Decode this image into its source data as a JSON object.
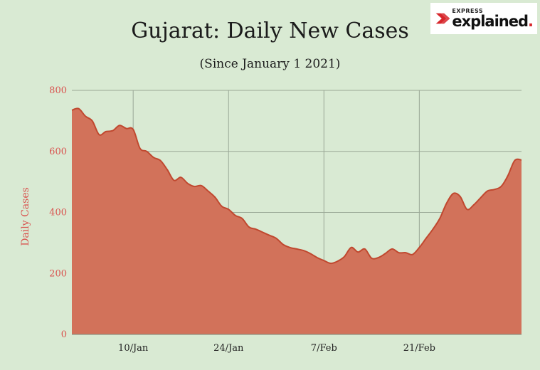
{
  "header": {
    "title": "Gujarat: Daily New Cases",
    "subtitle": "(Since January 1 2021)"
  },
  "logo": {
    "top_text": "EXPRESS",
    "main_text": "explained",
    "dot": ".",
    "accent_color": "#d7262b"
  },
  "colors": {
    "background": "#d9ead3",
    "area_fill": "#d2725a",
    "area_stroke": "#c0482f",
    "tick_label": "#d9534f",
    "grid": "#9aa896"
  },
  "chart_data": {
    "type": "area",
    "title": "Gujarat: Daily New Cases",
    "subtitle": "(Since January 1 2021)",
    "xlabel": "",
    "ylabel": "Daily Cases",
    "ylim": [
      0,
      800
    ],
    "yticks": [
      0,
      200,
      400,
      600,
      800
    ],
    "xlim": [
      1,
      67
    ],
    "xticks": [
      {
        "day": 10,
        "label": "10/Jan"
      },
      {
        "day": 24,
        "label": "24/Jan"
      },
      {
        "day": 38,
        "label": "7/Feb"
      },
      {
        "day": 52,
        "label": "21/Feb"
      }
    ],
    "grid": true,
    "series": [
      {
        "name": "",
        "x": [
          1,
          2,
          3,
          4,
          5,
          6,
          7,
          8,
          9,
          10,
          11,
          12,
          13,
          14,
          15,
          16,
          17,
          18,
          19,
          20,
          21,
          22,
          23,
          24,
          25,
          26,
          27,
          28,
          29,
          30,
          31,
          32,
          33,
          34,
          35,
          36,
          37,
          38,
          39,
          40,
          41,
          42,
          43,
          44,
          45,
          46,
          47,
          48,
          49,
          50,
          51,
          52,
          53,
          54,
          55,
          56,
          57,
          58,
          59,
          60,
          61,
          62,
          63,
          64,
          65,
          66,
          67
        ],
        "values": [
          735,
          740,
          715,
          700,
          655,
          665,
          668,
          685,
          675,
          672,
          610,
          600,
          580,
          570,
          540,
          505,
          515,
          495,
          485,
          488,
          470,
          450,
          420,
          410,
          390,
          380,
          352,
          345,
          335,
          325,
          315,
          295,
          285,
          280,
          275,
          265,
          252,
          242,
          233,
          240,
          255,
          285,
          270,
          280,
          250,
          252,
          265,
          280,
          268,
          268,
          262,
          285,
          315,
          345,
          380,
          430,
          462,
          452,
          410,
          425,
          448,
          470,
          475,
          485,
          520,
          570,
          572
        ]
      }
    ]
  }
}
